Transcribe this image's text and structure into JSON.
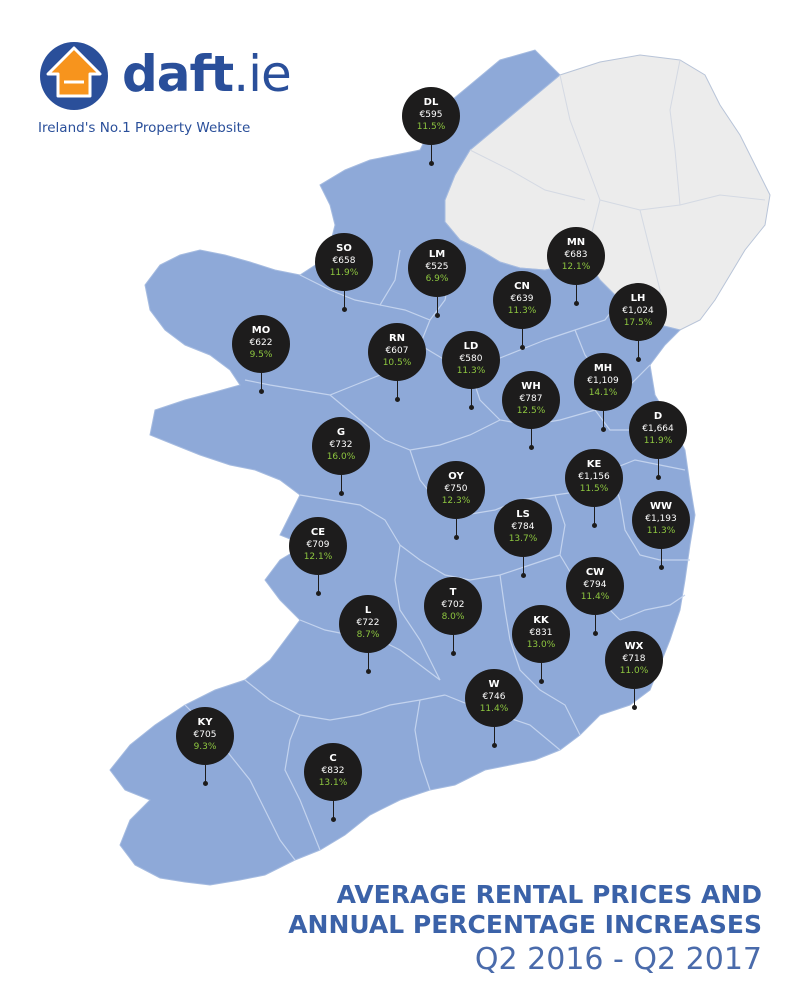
{
  "brand": {
    "name": "daft",
    "tld": ".ie",
    "tagline": "Ireland's No.1 Property Website",
    "colors": {
      "primary": "#2a4f9a",
      "accent": "#f7941d"
    }
  },
  "title": {
    "line1": "AVERAGE RENTAL PRICES AND",
    "line2": "ANNUAL PERCENTAGE INCREASES",
    "period": "Q2 2016 - Q2  2017"
  },
  "colors": {
    "republic": "#8ea9d8",
    "northern_ireland": "#ececec",
    "marker": "#1d1c1c",
    "increase_text": "#8dc63f"
  },
  "counties": [
    {
      "code": "DL",
      "price": "€595",
      "change": "11.5%"
    },
    {
      "code": "SO",
      "price": "€658",
      "change": "11.9%"
    },
    {
      "code": "LM",
      "price": "€525",
      "change": "6.9%"
    },
    {
      "code": "MN",
      "price": "€683",
      "change": "12.1%"
    },
    {
      "code": "CN",
      "price": "€639",
      "change": "11.3%"
    },
    {
      "code": "LH",
      "price": "€1,024",
      "change": "17.5%"
    },
    {
      "code": "MO",
      "price": "€622",
      "change": "9.5%"
    },
    {
      "code": "RN",
      "price": "€607",
      "change": "10.5%"
    },
    {
      "code": "LD",
      "price": "€580",
      "change": "11.3%"
    },
    {
      "code": "MH",
      "price": "€1,109",
      "change": "14.1%"
    },
    {
      "code": "WH",
      "price": "€787",
      "change": "12.5%"
    },
    {
      "code": "D",
      "price": "€1,664",
      "change": "11.9%"
    },
    {
      "code": "G",
      "price": "€732",
      "change": "16.0%"
    },
    {
      "code": "KE",
      "price": "€1,156",
      "change": "11.5%"
    },
    {
      "code": "OY",
      "price": "€750",
      "change": "12.3%"
    },
    {
      "code": "WW",
      "price": "€1,193",
      "change": "11.3%"
    },
    {
      "code": "CE",
      "price": "€709",
      "change": "12.1%"
    },
    {
      "code": "LS",
      "price": "€784",
      "change": "13.7%"
    },
    {
      "code": "CW",
      "price": "€794",
      "change": "11.4%"
    },
    {
      "code": "T",
      "price": "€702",
      "change": "8.0%"
    },
    {
      "code": "L",
      "price": "€722",
      "change": "8.7%"
    },
    {
      "code": "KK",
      "price": "€831",
      "change": "13.0%"
    },
    {
      "code": "WX",
      "price": "€718",
      "change": "11.0%"
    },
    {
      "code": "W",
      "price": "€746",
      "change": "11.4%"
    },
    {
      "code": "KY",
      "price": "€705",
      "change": "9.3%"
    },
    {
      "code": "C",
      "price": "€832",
      "change": "13.1%"
    }
  ]
}
